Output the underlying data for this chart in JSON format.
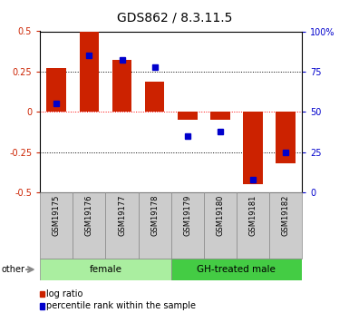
{
  "title": "GDS862 / 8.3.11.5",
  "samples": [
    "GSM19175",
    "GSM19176",
    "GSM19177",
    "GSM19178",
    "GSM19179",
    "GSM19180",
    "GSM19181",
    "GSM19182"
  ],
  "log_ratio": [
    0.27,
    0.5,
    0.32,
    0.19,
    -0.05,
    -0.05,
    -0.45,
    -0.32
  ],
  "percentile_rank": [
    55,
    85,
    82,
    78,
    35,
    38,
    8,
    25
  ],
  "groups": [
    {
      "label": "female",
      "start": 0,
      "end": 4,
      "color": "#AAEEA0"
    },
    {
      "label": "GH-treated male",
      "start": 4,
      "end": 8,
      "color": "#44CC44"
    }
  ],
  "ylim_left": [
    -0.5,
    0.5
  ],
  "ylim_right": [
    0,
    100
  ],
  "yticks_left": [
    -0.5,
    -0.25,
    0,
    0.25,
    0.5
  ],
  "yticks_right": [
    0,
    25,
    50,
    75,
    100
  ],
  "bar_color": "#CC2200",
  "dot_color": "#0000CC",
  "bg_color": "#FFFFFF",
  "grid_color": "#000000",
  "zero_line_color": "#FF0000",
  "legend_log_ratio": "log ratio",
  "legend_percentile": "percentile rank within the sample",
  "other_label": "other"
}
